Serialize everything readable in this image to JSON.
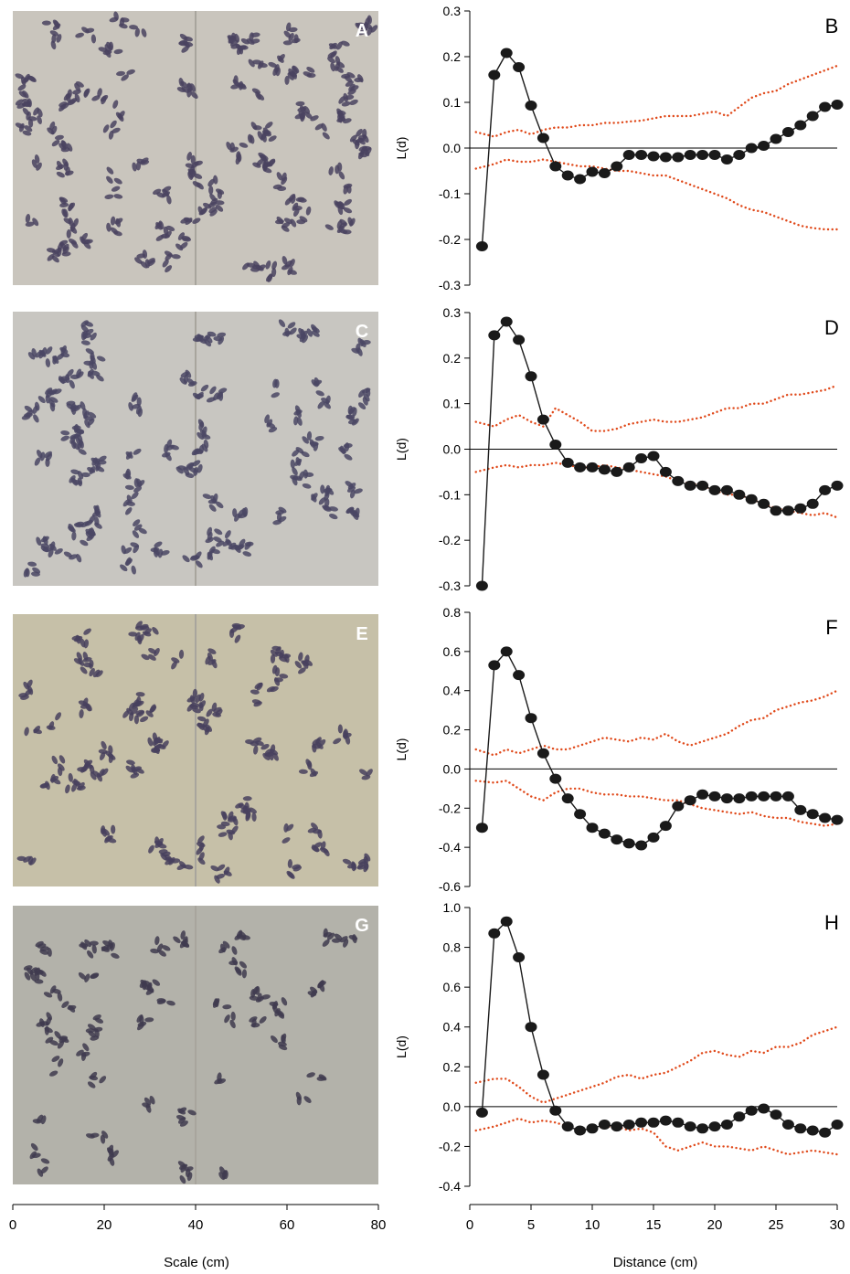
{
  "scale_axis": {
    "label": "Scale (cm)",
    "ticks": [
      "0",
      "20",
      "40",
      "60",
      "80"
    ],
    "range": [
      0,
      80
    ]
  },
  "photos": [
    {
      "label": "A",
      "tone": "#c9c5bd",
      "cluster_color": "#4a4360"
    },
    {
      "label": "C",
      "tone": "#c8c6c1",
      "cluster_color": "#4a4664"
    },
    {
      "label": "E",
      "tone": "#c6c0a8",
      "cluster_color": "#48415e"
    },
    {
      "label": "G",
      "tone": "#b3b2aa",
      "cluster_color": "#3f3b4f"
    }
  ],
  "colors": {
    "observed": "#1a1a1a",
    "envelope": "#e0491a"
  },
  "chart_data": [
    {
      "type": "line",
      "panel": "B",
      "ylabel": "L(d)",
      "xlabel": "",
      "xlim": [
        0,
        30
      ],
      "ylim": [
        -0.3,
        0.3
      ],
      "xticks": [
        "0",
        "5",
        "10",
        "15",
        "20",
        "25",
        "30"
      ],
      "yticks": [
        "-0.3",
        "-0.2",
        "-0.1",
        "0.0",
        "0.1",
        "0.2",
        "0.3"
      ],
      "series": [
        {
          "role": "observed",
          "x": [
            1,
            2,
            3,
            4,
            5,
            6,
            7,
            8,
            9,
            10,
            11,
            12,
            13,
            14,
            15,
            16,
            17,
            18,
            19,
            20,
            21,
            22,
            23,
            24,
            25,
            26,
            27,
            28,
            29,
            30
          ],
          "y": [
            -0.215,
            0.16,
            0.208,
            0.177,
            0.093,
            0.022,
            -0.04,
            -0.06,
            -0.068,
            -0.052,
            -0.055,
            -0.04,
            -0.015,
            -0.015,
            -0.018,
            -0.02,
            -0.02,
            -0.015,
            -0.015,
            -0.015,
            -0.025,
            -0.015,
            0,
            0.005,
            0.02,
            0.035,
            0.05,
            0.07,
            0.09,
            0.095
          ]
        },
        {
          "role": "upper envelope",
          "x": [
            0.5,
            2,
            3,
            4,
            5,
            6,
            7,
            8,
            9,
            10,
            11,
            12,
            13,
            14,
            15,
            16,
            17,
            18,
            19,
            20,
            21,
            22,
            23,
            24,
            25,
            26,
            27,
            28,
            29,
            30
          ],
          "y": [
            0.035,
            0.025,
            0.035,
            0.04,
            0.03,
            0.04,
            0.045,
            0.045,
            0.05,
            0.05,
            0.055,
            0.055,
            0.058,
            0.06,
            0.065,
            0.07,
            0.07,
            0.07,
            0.075,
            0.08,
            0.07,
            0.09,
            0.11,
            0.12,
            0.125,
            0.14,
            0.15,
            0.16,
            0.17,
            0.18
          ]
        },
        {
          "role": "lower envelope",
          "x": [
            0.5,
            2,
            3,
            4,
            5,
            6,
            7,
            8,
            9,
            10,
            11,
            12,
            13,
            14,
            15,
            16,
            17,
            18,
            19,
            20,
            21,
            22,
            23,
            24,
            25,
            26,
            27,
            28,
            29,
            30
          ],
          "y": [
            -0.045,
            -0.035,
            -0.025,
            -0.03,
            -0.03,
            -0.025,
            -0.03,
            -0.035,
            -0.04,
            -0.04,
            -0.045,
            -0.05,
            -0.05,
            -0.055,
            -0.06,
            -0.06,
            -0.07,
            -0.08,
            -0.09,
            -0.1,
            -0.11,
            -0.125,
            -0.135,
            -0.14,
            -0.15,
            -0.16,
            -0.17,
            -0.175,
            -0.178,
            -0.178
          ]
        }
      ]
    },
    {
      "type": "line",
      "panel": "D",
      "ylabel": "L(d)",
      "xlabel": "",
      "xlim": [
        0,
        30
      ],
      "ylim": [
        -0.3,
        0.3
      ],
      "xticks": [
        "0",
        "5",
        "10",
        "15",
        "20",
        "25",
        "30"
      ],
      "yticks": [
        "-0.3",
        "-0.2",
        "-0.1",
        "0.0",
        "0.1",
        "0.2",
        "0.3"
      ],
      "series": [
        {
          "role": "observed",
          "x": [
            1,
            2,
            3,
            4,
            5,
            6,
            7,
            8,
            9,
            10,
            11,
            12,
            13,
            14,
            15,
            16,
            17,
            18,
            19,
            20,
            21,
            22,
            23,
            24,
            25,
            26,
            27,
            28,
            29,
            30
          ],
          "y": [
            -0.3,
            0.25,
            0.28,
            0.24,
            0.16,
            0.065,
            0.01,
            -0.03,
            -0.04,
            -0.04,
            -0.045,
            -0.05,
            -0.04,
            -0.02,
            -0.015,
            -0.05,
            -0.07,
            -0.08,
            -0.08,
            -0.09,
            -0.09,
            -0.1,
            -0.11,
            -0.12,
            -0.135,
            -0.135,
            -0.13,
            -0.12,
            -0.09,
            -0.08
          ]
        },
        {
          "role": "upper envelope",
          "x": [
            0.5,
            2,
            3,
            4,
            5,
            6,
            7,
            8,
            9,
            10,
            11,
            12,
            13,
            14,
            15,
            16,
            17,
            18,
            19,
            20,
            21,
            22,
            23,
            24,
            25,
            26,
            27,
            28,
            29,
            30
          ],
          "y": [
            0.06,
            0.05,
            0.065,
            0.075,
            0.06,
            0.05,
            0.09,
            0.075,
            0.06,
            0.04,
            0.04,
            0.045,
            0.055,
            0.06,
            0.065,
            0.06,
            0.06,
            0.065,
            0.07,
            0.08,
            0.09,
            0.09,
            0.1,
            0.1,
            0.11,
            0.12,
            0.12,
            0.125,
            0.13,
            0.14
          ]
        },
        {
          "role": "lower envelope",
          "x": [
            0.5,
            2,
            3,
            4,
            5,
            6,
            7,
            8,
            9,
            10,
            11,
            12,
            13,
            14,
            15,
            16,
            17,
            18,
            19,
            20,
            21,
            22,
            23,
            24,
            25,
            26,
            27,
            28,
            29,
            30
          ],
          "y": [
            -0.05,
            -0.04,
            -0.035,
            -0.04,
            -0.035,
            -0.035,
            -0.03,
            -0.035,
            -0.04,
            -0.04,
            -0.035,
            -0.04,
            -0.045,
            -0.05,
            -0.055,
            -0.06,
            -0.07,
            -0.075,
            -0.08,
            -0.09,
            -0.1,
            -0.1,
            -0.11,
            -0.12,
            -0.13,
            -0.135,
            -0.14,
            -0.145,
            -0.14,
            -0.15
          ]
        }
      ]
    },
    {
      "type": "line",
      "panel": "F",
      "ylabel": "L(d)",
      "xlabel": "",
      "xlim": [
        0,
        30
      ],
      "ylim": [
        -0.6,
        0.8
      ],
      "xticks": [
        "0",
        "5",
        "10",
        "15",
        "20",
        "25",
        "30"
      ],
      "yticks": [
        "-0.6",
        "-0.4",
        "-0.2",
        "0.0",
        "0.2",
        "0.4",
        "0.6",
        "0.8"
      ],
      "series": [
        {
          "role": "observed",
          "x": [
            1,
            2,
            3,
            4,
            5,
            6,
            7,
            8,
            9,
            10,
            11,
            12,
            13,
            14,
            15,
            16,
            17,
            18,
            19,
            20,
            21,
            22,
            23,
            24,
            25,
            26,
            27,
            28,
            29,
            30
          ],
          "y": [
            -0.3,
            0.53,
            0.6,
            0.48,
            0.26,
            0.08,
            -0.05,
            -0.15,
            -0.23,
            -0.3,
            -0.33,
            -0.36,
            -0.38,
            -0.39,
            -0.35,
            -0.29,
            -0.19,
            -0.16,
            -0.13,
            -0.14,
            -0.15,
            -0.15,
            -0.14,
            -0.14,
            -0.14,
            -0.14,
            -0.21,
            -0.23,
            -0.25,
            -0.26
          ]
        },
        {
          "role": "upper envelope",
          "x": [
            0.5,
            2,
            3,
            4,
            5,
            6,
            7,
            8,
            9,
            10,
            11,
            12,
            13,
            14,
            15,
            16,
            17,
            18,
            19,
            20,
            21,
            22,
            23,
            24,
            25,
            26,
            27,
            28,
            29,
            30
          ],
          "y": [
            0.1,
            0.07,
            0.1,
            0.08,
            0.1,
            0.12,
            0.1,
            0.1,
            0.12,
            0.14,
            0.16,
            0.15,
            0.14,
            0.16,
            0.15,
            0.18,
            0.14,
            0.12,
            0.14,
            0.16,
            0.18,
            0.22,
            0.25,
            0.26,
            0.3,
            0.32,
            0.34,
            0.35,
            0.37,
            0.4
          ]
        },
        {
          "role": "lower envelope",
          "x": [
            0.5,
            2,
            3,
            4,
            5,
            6,
            7,
            8,
            9,
            10,
            11,
            12,
            13,
            14,
            15,
            16,
            17,
            18,
            19,
            20,
            21,
            22,
            23,
            24,
            25,
            26,
            27,
            28,
            29,
            30
          ],
          "y": [
            -0.06,
            -0.07,
            -0.06,
            -0.1,
            -0.14,
            -0.16,
            -0.12,
            -0.1,
            -0.1,
            -0.12,
            -0.13,
            -0.13,
            -0.14,
            -0.14,
            -0.15,
            -0.16,
            -0.16,
            -0.18,
            -0.2,
            -0.21,
            -0.22,
            -0.23,
            -0.22,
            -0.24,
            -0.25,
            -0.25,
            -0.27,
            -0.28,
            -0.29,
            -0.28
          ]
        }
      ]
    },
    {
      "type": "line",
      "panel": "H",
      "ylabel": "L(d)",
      "xlabel": "Distance (cm)",
      "xlim": [
        0,
        30
      ],
      "ylim": [
        -0.4,
        1.0
      ],
      "xticks": [
        "0",
        "5",
        "10",
        "15",
        "20",
        "25",
        "30"
      ],
      "yticks": [
        "-0.4",
        "-0.2",
        "0.0",
        "0.2",
        "0.4",
        "0.6",
        "0.8",
        "1.0"
      ],
      "series": [
        {
          "role": "observed",
          "x": [
            1,
            2,
            3,
            4,
            5,
            6,
            7,
            8,
            9,
            10,
            11,
            12,
            13,
            14,
            15,
            16,
            17,
            18,
            19,
            20,
            21,
            22,
            23,
            24,
            25,
            26,
            27,
            28,
            29,
            30
          ],
          "y": [
            -0.03,
            0.87,
            0.93,
            0.75,
            0.4,
            0.16,
            -0.02,
            -0.1,
            -0.12,
            -0.11,
            -0.09,
            -0.1,
            -0.09,
            -0.08,
            -0.08,
            -0.07,
            -0.08,
            -0.1,
            -0.11,
            -0.1,
            -0.09,
            -0.05,
            -0.02,
            -0.01,
            -0.04,
            -0.09,
            -0.11,
            -0.12,
            -0.13,
            -0.09
          ]
        },
        {
          "role": "upper envelope",
          "x": [
            0.5,
            2,
            3,
            4,
            5,
            6,
            7,
            8,
            9,
            10,
            11,
            12,
            13,
            14,
            15,
            16,
            17,
            18,
            19,
            20,
            21,
            22,
            23,
            24,
            25,
            26,
            27,
            28,
            29,
            30
          ],
          "y": [
            0.12,
            0.14,
            0.14,
            0.1,
            0.05,
            0.02,
            0.04,
            0.06,
            0.08,
            0.1,
            0.12,
            0.15,
            0.16,
            0.14,
            0.16,
            0.17,
            0.2,
            0.23,
            0.27,
            0.28,
            0.26,
            0.25,
            0.28,
            0.27,
            0.3,
            0.3,
            0.32,
            0.36,
            0.38,
            0.4
          ]
        },
        {
          "role": "lower envelope",
          "x": [
            0.5,
            2,
            3,
            4,
            5,
            6,
            7,
            8,
            9,
            10,
            11,
            12,
            13,
            14,
            15,
            16,
            17,
            18,
            19,
            20,
            21,
            22,
            23,
            24,
            25,
            26,
            27,
            28,
            29,
            30
          ],
          "y": [
            -0.12,
            -0.1,
            -0.08,
            -0.06,
            -0.08,
            -0.07,
            -0.08,
            -0.1,
            -0.12,
            -0.11,
            -0.1,
            -0.1,
            -0.12,
            -0.11,
            -0.13,
            -0.2,
            -0.22,
            -0.2,
            -0.18,
            -0.2,
            -0.2,
            -0.21,
            -0.22,
            -0.2,
            -0.22,
            -0.24,
            -0.23,
            -0.22,
            -0.23,
            -0.24
          ]
        }
      ]
    }
  ]
}
